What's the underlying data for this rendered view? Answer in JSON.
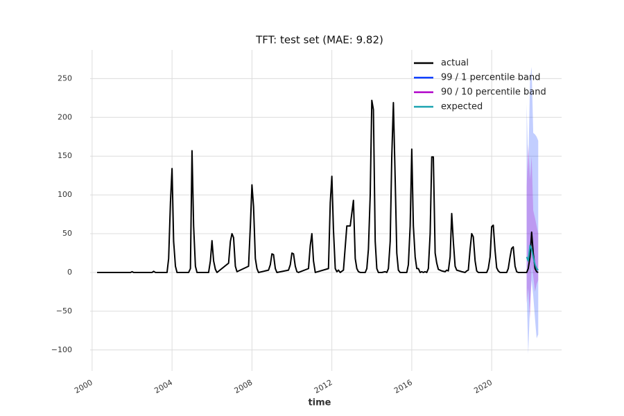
{
  "chart_data": {
    "type": "line",
    "title": "TFT: test set (MAE: 9.82)",
    "x_label": "time",
    "xlim": [
      1999.9,
      2023.5
    ],
    "xticks": [
      2000,
      2004,
      2008,
      2012,
      2016,
      2020
    ],
    "ylim": [
      -127,
      287
    ],
    "yticks": [
      {
        "value": -100,
        "label": "−100"
      },
      {
        "value": -50,
        "label": "−50"
      },
      0,
      50,
      100,
      150,
      200,
      250
    ],
    "grid": true,
    "legend": "upper right",
    "series": [
      {
        "name": "actual",
        "color": "#000000",
        "kind": "line",
        "x": [
          2000.25,
          2001.92,
          2002.0,
          2002.08,
          2003.0,
          2003.08,
          2003.17,
          2003.75,
          2003.83,
          2003.92,
          2004.0,
          2004.08,
          2004.17,
          2004.25,
          2004.83,
          2004.92,
          2005.0,
          2005.08,
          2005.17,
          2005.25,
          2005.83,
          2005.92,
          2006.0,
          2006.08,
          2006.17,
          2006.25,
          2006.83,
          2006.92,
          2007.0,
          2007.08,
          2007.17,
          2007.25,
          2007.83,
          2007.92,
          2008.0,
          2008.08,
          2008.17,
          2008.25,
          2008.33,
          2008.83,
          2008.92,
          2009.0,
          2009.08,
          2009.17,
          2009.25,
          2009.83,
          2009.92,
          2010.0,
          2010.08,
          2010.17,
          2010.25,
          2010.33,
          2010.83,
          2010.92,
          2011.0,
          2011.08,
          2011.17,
          2011.83,
          2011.92,
          2012.0,
          2012.08,
          2012.17,
          2012.25,
          2012.33,
          2012.42,
          2012.58,
          2012.75,
          2012.92,
          2013.08,
          2013.17,
          2013.25,
          2013.33,
          2013.42,
          2013.67,
          2013.75,
          2013.83,
          2013.92,
          2014.0,
          2014.08,
          2014.17,
          2014.25,
          2014.33,
          2014.5,
          2014.67,
          2014.75,
          2014.83,
          2014.92,
          2015.0,
          2015.08,
          2015.17,
          2015.25,
          2015.33,
          2015.42,
          2015.75,
          2015.83,
          2015.92,
          2016.0,
          2016.08,
          2016.17,
          2016.25,
          2016.33,
          2016.42,
          2016.5,
          2016.58,
          2016.67,
          2016.75,
          2016.83,
          2016.92,
          2017.0,
          2017.08,
          2017.17,
          2017.25,
          2017.33,
          2017.5,
          2017.67,
          2017.75,
          2017.83,
          2017.92,
          2018.0,
          2018.08,
          2018.17,
          2018.25,
          2018.5,
          2018.67,
          2018.75,
          2018.83,
          2018.92,
          2019.0,
          2019.08,
          2019.17,
          2019.25,
          2019.33,
          2019.75,
          2019.83,
          2019.92,
          2020.0,
          2020.08,
          2020.17,
          2020.25,
          2020.33,
          2020.42,
          2020.75,
          2020.83,
          2020.92,
          2021.0,
          2021.08,
          2021.17,
          2021.25,
          2021.33,
          2021.75,
          2021.83,
          2021.92,
          2022.0,
          2022.08,
          2022.17,
          2022.25,
          2022.33
        ],
        "values": [
          0,
          0,
          1,
          0,
          0,
          1.5,
          0,
          0,
          18,
          90,
          134,
          40,
          8,
          0,
          0,
          5,
          157,
          60,
          8,
          0,
          0,
          15,
          41,
          15,
          4,
          0,
          12,
          40,
          50,
          45,
          8,
          1,
          8,
          60,
          113,
          85,
          18,
          5,
          0,
          3,
          10,
          24,
          23,
          5,
          0,
          3,
          10,
          25,
          24,
          8,
          1,
          0,
          5,
          35,
          50,
          15,
          0,
          5,
          90,
          124,
          55,
          5,
          1,
          3,
          0,
          3,
          60,
          60,
          93,
          18,
          5,
          1,
          0,
          0,
          5,
          30,
          100,
          222,
          210,
          40,
          5,
          0,
          0,
          1,
          0,
          5,
          40,
          150,
          219,
          120,
          25,
          3,
          0,
          0,
          10,
          60,
          159,
          60,
          20,
          5,
          5,
          0,
          1,
          0,
          1,
          0,
          5,
          50,
          149,
          149,
          25,
          12,
          4,
          2,
          1,
          3,
          2,
          20,
          76,
          40,
          8,
          3,
          1,
          0,
          2,
          3,
          30,
          50,
          46,
          15,
          2,
          0,
          0,
          5,
          20,
          59,
          61,
          28,
          6,
          2,
          0,
          0,
          5,
          20,
          31,
          33,
          8,
          1,
          0,
          0,
          5,
          20,
          52,
          25,
          5,
          1,
          0
        ]
      },
      {
        "name": "99 / 1 percentile band",
        "color": "#0a3cff",
        "kind": "band",
        "x": [
          2021.75,
          2021.83,
          2021.92,
          2022.0,
          2022.08,
          2022.17,
          2022.25,
          2022.33
        ],
        "upper": [
          218,
          130,
          250,
          265,
          180,
          178,
          175,
          170
        ],
        "lower": [
          -20,
          -105,
          -40,
          -10,
          -30,
          -60,
          -85,
          -80
        ]
      },
      {
        "name": "90 / 10 percentile band",
        "color": "#b000c8",
        "kind": "band",
        "x": [
          2021.75,
          2021.83,
          2021.92,
          2022.0,
          2022.08,
          2022.17,
          2022.25,
          2022.33
        ],
        "upper": [
          110,
          165,
          120,
          150,
          80,
          70,
          60,
          50
        ],
        "lower": [
          -40,
          -20,
          -60,
          10,
          -5,
          -25,
          -15,
          -10
        ]
      },
      {
        "name": "expected",
        "color": "#1aa3b0",
        "kind": "line",
        "x": [
          2021.75,
          2021.83,
          2021.92,
          2022.0,
          2022.08,
          2022.17,
          2022.25,
          2022.33
        ],
        "values": [
          20,
          15,
          35,
          30,
          20,
          10,
          5,
          3
        ]
      }
    ]
  }
}
